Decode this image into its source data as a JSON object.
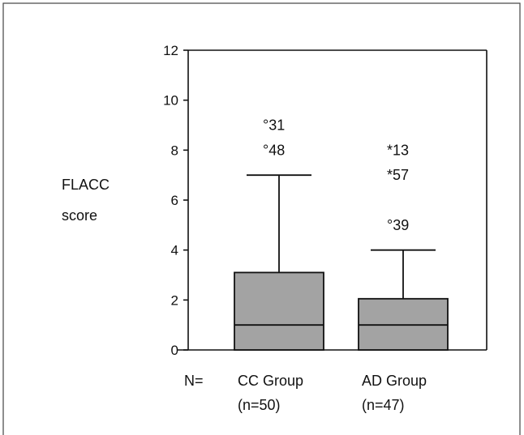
{
  "chart_data": {
    "type": "box",
    "ylabel_lines": [
      "FLACC",
      "score"
    ],
    "ylim": [
      0,
      12
    ],
    "yticks": [
      0,
      2,
      4,
      6,
      8,
      10,
      12
    ],
    "n_label": "N=",
    "groups": [
      {
        "name": "CC Group",
        "n_text": "(n=50)",
        "q1": 0,
        "median": 1,
        "q3": 3.1,
        "whisker_low": 0,
        "whisker_high": 7,
        "outliers": [
          {
            "label": "°31",
            "value": 9
          },
          {
            "label": "°48",
            "value": 8
          }
        ]
      },
      {
        "name": "AD Group",
        "n_text": "(n=47)",
        "q1": 0,
        "median": 1,
        "q3": 2.05,
        "whisker_low": 0,
        "whisker_high": 4,
        "outliers": [
          {
            "label": "*13",
            "value": 8
          },
          {
            "label": "*57",
            "value": 7
          },
          {
            "label": "°39",
            "value": 5
          }
        ]
      }
    ]
  }
}
